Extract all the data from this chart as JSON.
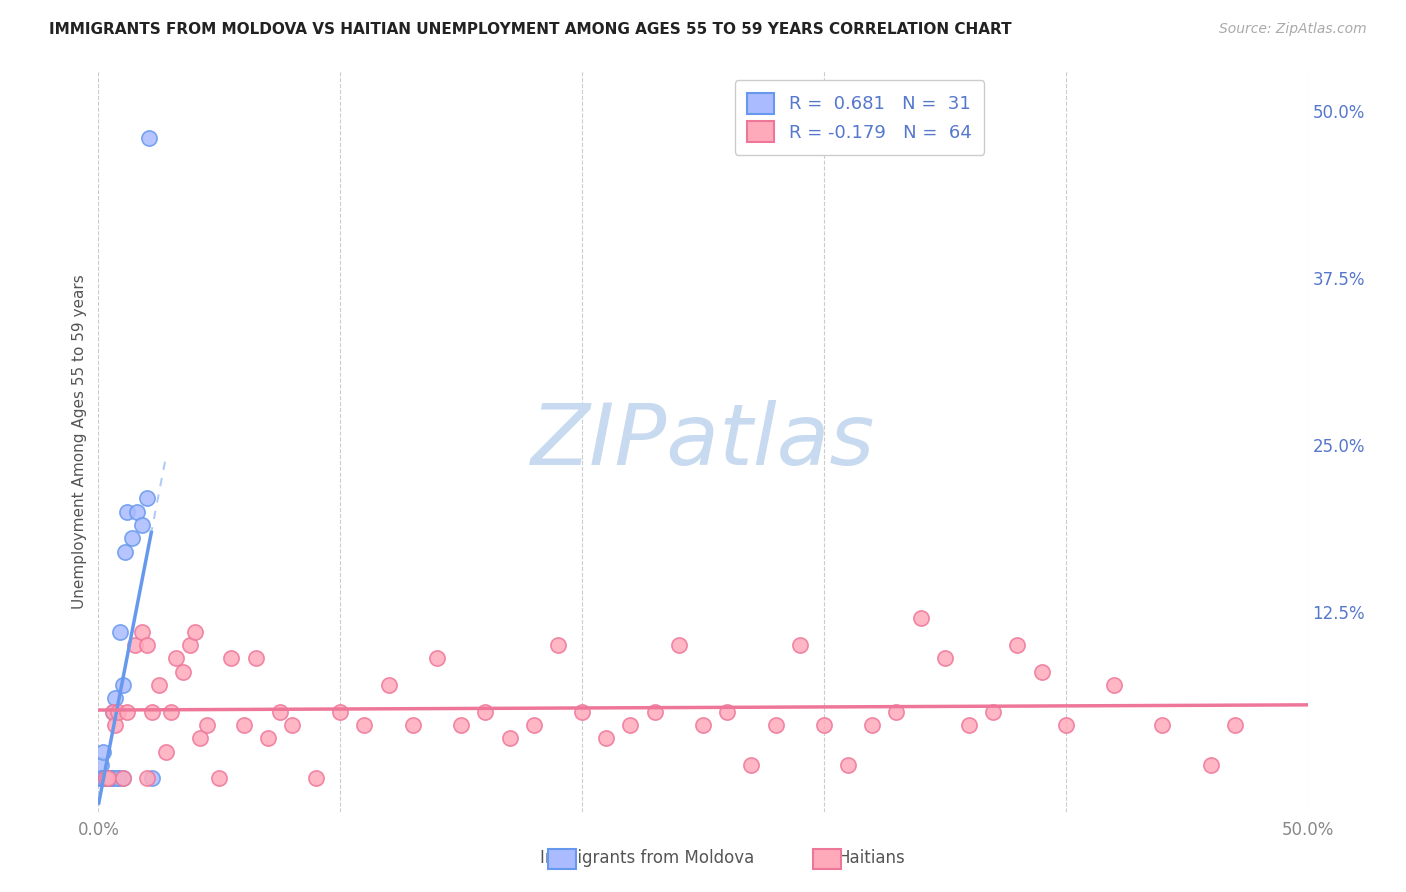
{
  "title": "IMMIGRANTS FROM MOLDOVA VS HAITIAN UNEMPLOYMENT AMONG AGES 55 TO 59 YEARS CORRELATION CHART",
  "source": "Source: ZipAtlas.com",
  "ylabel": "Unemployment Among Ages 55 to 59 years",
  "xlim": [
    0.0,
    0.5
  ],
  "ylim": [
    -0.025,
    0.53
  ],
  "blue_color": "#6699ee",
  "blue_fill": "#aabbff",
  "pink_color": "#ee7799",
  "pink_fill": "#ffaabb",
  "legend_blue_r": "R =  0.681",
  "legend_blue_n": "N =  31",
  "legend_pink_r": "R = -0.179",
  "legend_pink_n": "N =  64",
  "watermark_text": "ZIPatlas",
  "watermark_color": "#c8daf0",
  "background_color": "#ffffff",
  "grid_color": "#cccccc",
  "title_color": "#222222",
  "axis_label_color": "#555555",
  "tick_color": "#888888",
  "right_tick_color": "#5577cc",
  "source_color": "#aaaaaa",
  "blue_scatter_x": [
    0.0005,
    0.001,
    0.001,
    0.0015,
    0.002,
    0.002,
    0.003,
    0.003,
    0.004,
    0.004,
    0.005,
    0.005,
    0.006,
    0.007,
    0.008,
    0.009,
    0.01,
    0.011,
    0.012,
    0.014,
    0.016,
    0.018,
    0.02,
    0.022,
    0.003,
    0.004,
    0.005,
    0.006,
    0.008,
    0.01,
    0.021
  ],
  "blue_scatter_y": [
    0.0,
    0.0,
    0.01,
    0.0,
    0.0,
    0.02,
    0.0,
    0.0,
    0.0,
    0.0,
    0.0,
    0.0,
    0.05,
    0.06,
    0.0,
    0.11,
    0.07,
    0.17,
    0.2,
    0.18,
    0.2,
    0.19,
    0.21,
    0.0,
    0.0,
    0.0,
    0.0,
    0.0,
    0.0,
    0.0,
    0.48
  ],
  "pink_scatter_x": [
    0.003,
    0.004,
    0.006,
    0.007,
    0.008,
    0.01,
    0.012,
    0.015,
    0.018,
    0.02,
    0.02,
    0.022,
    0.025,
    0.028,
    0.03,
    0.032,
    0.035,
    0.038,
    0.04,
    0.042,
    0.045,
    0.05,
    0.055,
    0.06,
    0.065,
    0.07,
    0.075,
    0.08,
    0.09,
    0.1,
    0.11,
    0.12,
    0.13,
    0.14,
    0.15,
    0.16,
    0.17,
    0.18,
    0.19,
    0.2,
    0.21,
    0.22,
    0.23,
    0.24,
    0.25,
    0.26,
    0.27,
    0.28,
    0.29,
    0.3,
    0.31,
    0.32,
    0.33,
    0.34,
    0.35,
    0.36,
    0.37,
    0.38,
    0.39,
    0.4,
    0.42,
    0.44,
    0.46,
    0.47
  ],
  "pink_scatter_y": [
    0.0,
    0.0,
    0.05,
    0.04,
    0.05,
    0.0,
    0.05,
    0.1,
    0.11,
    0.1,
    0.0,
    0.05,
    0.07,
    0.02,
    0.05,
    0.09,
    0.08,
    0.1,
    0.11,
    0.03,
    0.04,
    0.0,
    0.09,
    0.04,
    0.09,
    0.03,
    0.05,
    0.04,
    0.0,
    0.05,
    0.04,
    0.07,
    0.04,
    0.09,
    0.04,
    0.05,
    0.03,
    0.04,
    0.1,
    0.05,
    0.03,
    0.04,
    0.05,
    0.1,
    0.04,
    0.05,
    0.01,
    0.04,
    0.1,
    0.04,
    0.01,
    0.04,
    0.05,
    0.12,
    0.09,
    0.04,
    0.05,
    0.1,
    0.08,
    0.04,
    0.07,
    0.04,
    0.01,
    0.04
  ]
}
